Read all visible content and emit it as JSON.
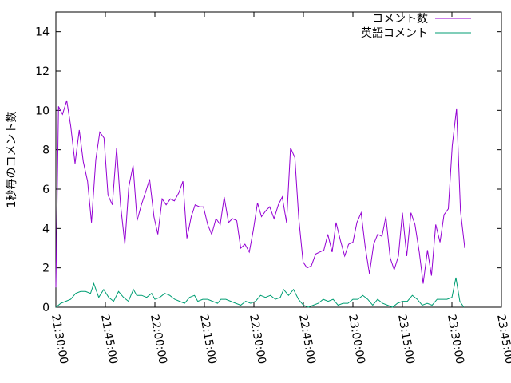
{
  "chart_data": {
    "type": "line",
    "title": "",
    "xlabel": "",
    "ylabel": "1秒毎のコメント数",
    "ylim": [
      0,
      15
    ],
    "yticks": [
      0,
      2,
      4,
      6,
      8,
      10,
      12,
      14
    ],
    "xlim_minutes": [
      0,
      135
    ],
    "xticks": [
      "21:30:00",
      "21:45:00",
      "22:00:00",
      "22:15:00",
      "22:30:00",
      "22:45:00",
      "23:00:00",
      "23:15:00",
      "23:30:00",
      "23:45:00"
    ],
    "legend_position": "top-right",
    "grid": false,
    "series": [
      {
        "name": "コメント数",
        "color": "#9400d3",
        "points": [
          [
            0.0,
            1.0
          ],
          [
            0.8,
            10.2
          ],
          [
            2.0,
            9.8
          ],
          [
            3.3,
            10.5
          ],
          [
            4.5,
            9.2
          ],
          [
            5.8,
            7.3
          ],
          [
            7.1,
            9.0
          ],
          [
            8.3,
            7.4
          ],
          [
            9.6,
            6.4
          ],
          [
            10.8,
            4.3
          ],
          [
            12.1,
            7.5
          ],
          [
            13.3,
            8.9
          ],
          [
            14.6,
            8.6
          ],
          [
            15.8,
            5.7
          ],
          [
            17.1,
            5.2
          ],
          [
            18.4,
            8.1
          ],
          [
            19.6,
            5.2
          ],
          [
            20.9,
            3.2
          ],
          [
            22.1,
            6.1
          ],
          [
            23.4,
            7.2
          ],
          [
            24.6,
            4.4
          ],
          [
            25.9,
            5.2
          ],
          [
            27.1,
            5.8
          ],
          [
            28.4,
            6.5
          ],
          [
            29.7,
            4.6
          ],
          [
            30.9,
            3.7
          ],
          [
            32.2,
            5.5
          ],
          [
            33.4,
            5.2
          ],
          [
            34.7,
            5.5
          ],
          [
            35.9,
            5.4
          ],
          [
            37.2,
            5.8
          ],
          [
            38.5,
            6.4
          ],
          [
            39.7,
            3.5
          ],
          [
            41.0,
            4.6
          ],
          [
            42.2,
            5.2
          ],
          [
            43.5,
            5.1
          ],
          [
            44.7,
            5.1
          ],
          [
            46.0,
            4.2
          ],
          [
            47.2,
            3.7
          ],
          [
            48.5,
            4.5
          ],
          [
            49.8,
            4.2
          ],
          [
            51.0,
            5.6
          ],
          [
            52.3,
            4.3
          ],
          [
            53.5,
            4.5
          ],
          [
            54.8,
            4.4
          ],
          [
            56.0,
            3.0
          ],
          [
            57.3,
            3.2
          ],
          [
            58.6,
            2.8
          ],
          [
            59.8,
            3.9
          ],
          [
            61.1,
            5.3
          ],
          [
            62.3,
            4.6
          ],
          [
            63.6,
            4.9
          ],
          [
            64.8,
            5.1
          ],
          [
            66.1,
            4.5
          ],
          [
            67.4,
            5.2
          ],
          [
            68.6,
            5.6
          ],
          [
            69.9,
            4.3
          ],
          [
            71.1,
            8.1
          ],
          [
            72.4,
            7.6
          ],
          [
            73.6,
            4.5
          ],
          [
            74.9,
            2.3
          ],
          [
            76.1,
            2.0
          ],
          [
            77.4,
            2.1
          ],
          [
            78.7,
            2.7
          ],
          [
            79.9,
            2.8
          ],
          [
            81.2,
            2.9
          ],
          [
            82.4,
            3.7
          ],
          [
            83.7,
            2.8
          ],
          [
            84.9,
            4.3
          ],
          [
            86.2,
            3.4
          ],
          [
            87.5,
            2.6
          ],
          [
            88.7,
            3.2
          ],
          [
            90.0,
            3.3
          ],
          [
            91.2,
            4.3
          ],
          [
            92.5,
            4.8
          ],
          [
            93.7,
            3.1
          ],
          [
            95.0,
            1.7
          ],
          [
            96.3,
            3.2
          ],
          [
            97.5,
            3.7
          ],
          [
            98.8,
            3.6
          ],
          [
            100.0,
            4.6
          ],
          [
            101.3,
            2.5
          ],
          [
            102.5,
            1.9
          ],
          [
            103.8,
            2.6
          ],
          [
            105.0,
            4.8
          ],
          [
            106.3,
            2.6
          ],
          [
            107.6,
            4.8
          ],
          [
            108.8,
            4.2
          ],
          [
            110.1,
            2.8
          ],
          [
            111.3,
            1.2
          ],
          [
            112.6,
            2.9
          ],
          [
            113.8,
            1.6
          ],
          [
            115.1,
            4.2
          ],
          [
            116.4,
            3.3
          ],
          [
            117.6,
            4.7
          ],
          [
            118.9,
            5.0
          ],
          [
            120.1,
            8.2
          ],
          [
            121.4,
            10.1
          ],
          [
            122.6,
            4.9
          ],
          [
            123.9,
            3.0
          ]
        ]
      },
      {
        "name": "英語コメント",
        "color": "#009e73",
        "points": [
          [
            0.0,
            0.0
          ],
          [
            1.5,
            0.2
          ],
          [
            3.0,
            0.3
          ],
          [
            4.5,
            0.4
          ],
          [
            6.0,
            0.7
          ],
          [
            7.5,
            0.8
          ],
          [
            9.0,
            0.8
          ],
          [
            10.5,
            0.7
          ],
          [
            11.5,
            1.2
          ],
          [
            13.0,
            0.5
          ],
          [
            14.5,
            0.9
          ],
          [
            16.0,
            0.5
          ],
          [
            17.5,
            0.3
          ],
          [
            19.0,
            0.8
          ],
          [
            20.5,
            0.5
          ],
          [
            22.0,
            0.3
          ],
          [
            23.5,
            0.9
          ],
          [
            24.5,
            0.6
          ],
          [
            26.0,
            0.6
          ],
          [
            27.5,
            0.5
          ],
          [
            29.0,
            0.7
          ],
          [
            30.0,
            0.4
          ],
          [
            31.5,
            0.5
          ],
          [
            33.0,
            0.7
          ],
          [
            34.5,
            0.6
          ],
          [
            36.0,
            0.4
          ],
          [
            37.5,
            0.3
          ],
          [
            39.0,
            0.2
          ],
          [
            40.5,
            0.5
          ],
          [
            42.0,
            0.6
          ],
          [
            43.0,
            0.3
          ],
          [
            44.5,
            0.4
          ],
          [
            46.0,
            0.4
          ],
          [
            47.5,
            0.3
          ],
          [
            49.0,
            0.2
          ],
          [
            50.0,
            0.4
          ],
          [
            51.5,
            0.4
          ],
          [
            53.0,
            0.3
          ],
          [
            54.5,
            0.2
          ],
          [
            56.0,
            0.1
          ],
          [
            57.5,
            0.3
          ],
          [
            59.0,
            0.2
          ],
          [
            60.5,
            0.3
          ],
          [
            62.0,
            0.6
          ],
          [
            63.5,
            0.5
          ],
          [
            65.0,
            0.6
          ],
          [
            66.5,
            0.4
          ],
          [
            68.0,
            0.5
          ],
          [
            69.0,
            0.9
          ],
          [
            70.5,
            0.6
          ],
          [
            72.0,
            0.9
          ],
          [
            73.5,
            0.4
          ],
          [
            75.0,
            0.1
          ],
          [
            76.5,
            0.0
          ],
          [
            78.0,
            0.1
          ],
          [
            79.5,
            0.2
          ],
          [
            81.0,
            0.4
          ],
          [
            82.5,
            0.3
          ],
          [
            84.0,
            0.4
          ],
          [
            85.5,
            0.1
          ],
          [
            87.0,
            0.2
          ],
          [
            88.5,
            0.2
          ],
          [
            90.0,
            0.4
          ],
          [
            91.5,
            0.4
          ],
          [
            93.0,
            0.6
          ],
          [
            94.5,
            0.4
          ],
          [
            96.0,
            0.1
          ],
          [
            97.5,
            0.4
          ],
          [
            99.0,
            0.2
          ],
          [
            100.5,
            0.1
          ],
          [
            102.0,
            0.0
          ],
          [
            103.5,
            0.2
          ],
          [
            105.0,
            0.3
          ],
          [
            106.5,
            0.3
          ],
          [
            108.0,
            0.6
          ],
          [
            109.5,
            0.4
          ],
          [
            111.0,
            0.1
          ],
          [
            112.5,
            0.2
          ],
          [
            114.0,
            0.1
          ],
          [
            115.5,
            0.4
          ],
          [
            117.0,
            0.4
          ],
          [
            118.5,
            0.4
          ],
          [
            120.0,
            0.5
          ],
          [
            121.2,
            1.5
          ],
          [
            122.4,
            0.3
          ],
          [
            123.6,
            0.0
          ]
        ]
      }
    ]
  }
}
